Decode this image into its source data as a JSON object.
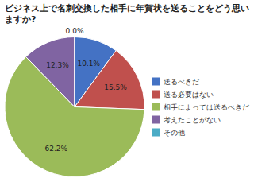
{
  "chart_data": {
    "type": "pie",
    "title": "ビジネス上で名刺交換した相手に年賀状を送ることをどう思いますか?",
    "categories": [
      "送るべきだ",
      "送る必要はない",
      "相手によっては送るべきだ",
      "考えたことがない",
      "その他"
    ],
    "values": [
      10.1,
      15.5,
      62.2,
      12.3,
      0.0
    ],
    "value_labels": [
      "10.1%",
      "15.5%",
      "62.2%",
      "12.3%",
      "0.0%"
    ],
    "colors": [
      "#4472C4",
      "#C0504D",
      "#9BBB59",
      "#8064A2",
      "#4BACC6"
    ],
    "data_labels": true,
    "legend": "right"
  }
}
